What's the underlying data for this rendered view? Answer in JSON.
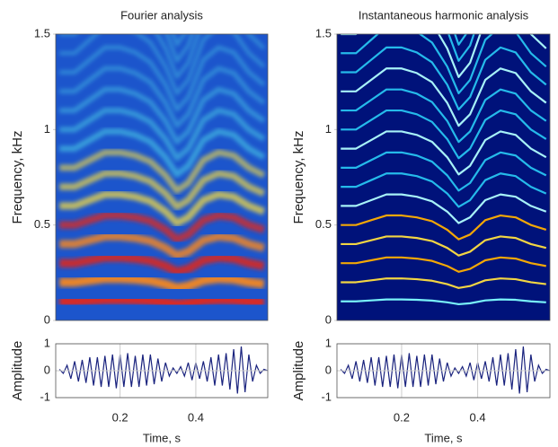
{
  "chart_data": [
    {
      "type": "spectrogram",
      "title": "Fourier analysis",
      "y_label": "Frequency, kHz",
      "x": [
        0.04,
        0.08,
        0.12,
        0.16,
        0.2,
        0.24,
        0.28,
        0.32,
        0.35,
        0.38,
        0.42,
        0.46,
        0.5,
        0.54,
        0.58
      ],
      "f0": [
        0.1,
        0.1,
        0.105,
        0.11,
        0.11,
        0.108,
        0.104,
        0.095,
        0.085,
        0.09,
        0.105,
        0.11,
        0.108,
        0.1,
        0.095
      ],
      "xlim": [
        0.03,
        0.59
      ],
      "ylim": [
        0,
        1.5
      ],
      "yticks": [
        0,
        0.5,
        1,
        1.5
      ]
    },
    {
      "type": "spectrogram",
      "title": "Instantaneous harmonic analysis",
      "y_label": "Frequency, kHz",
      "x": [
        0.04,
        0.08,
        0.12,
        0.16,
        0.2,
        0.24,
        0.28,
        0.32,
        0.35,
        0.38,
        0.42,
        0.46,
        0.5,
        0.54,
        0.58
      ],
      "f0": [
        0.1,
        0.1,
        0.105,
        0.11,
        0.11,
        0.108,
        0.104,
        0.095,
        0.085,
        0.09,
        0.105,
        0.11,
        0.108,
        0.1,
        0.095
      ],
      "xlim": [
        0.03,
        0.59
      ],
      "ylim": [
        0,
        1.5
      ],
      "yticks": [
        0,
        0.5,
        1,
        1.5
      ]
    },
    {
      "type": "line",
      "y_label": "Amplitude",
      "x_label": "Time, s",
      "color": "#1a237e",
      "grid": true,
      "x": [
        0.04,
        0.05,
        0.06,
        0.07,
        0.08,
        0.09,
        0.1,
        0.11,
        0.12,
        0.13,
        0.14,
        0.15,
        0.16,
        0.17,
        0.18,
        0.19,
        0.2,
        0.21,
        0.22,
        0.23,
        0.24,
        0.25,
        0.26,
        0.27,
        0.28,
        0.29,
        0.3,
        0.31,
        0.32,
        0.33,
        0.34,
        0.35,
        0.36,
        0.37,
        0.38,
        0.39,
        0.4,
        0.41,
        0.42,
        0.43,
        0.44,
        0.45,
        0.46,
        0.47,
        0.48,
        0.49,
        0.5,
        0.51,
        0.52,
        0.53,
        0.54,
        0.55,
        0.56,
        0.57,
        0.58,
        0.59
      ],
      "values": [
        0.05,
        -0.1,
        0.2,
        -0.3,
        0.35,
        -0.4,
        0.4,
        -0.45,
        0.5,
        -0.55,
        0.5,
        -0.6,
        0.55,
        -0.6,
        0.6,
        -0.65,
        0.6,
        -0.6,
        0.65,
        -0.6,
        0.55,
        -0.6,
        0.6,
        -0.55,
        0.6,
        -0.5,
        0.45,
        -0.4,
        0.3,
        -0.2,
        0.1,
        -0.1,
        0.15,
        -0.2,
        0.3,
        -0.35,
        0.3,
        -0.3,
        0.35,
        -0.4,
        0.5,
        -0.55,
        0.6,
        -0.55,
        0.65,
        -0.7,
        0.8,
        -0.85,
        0.9,
        -0.8,
        0.6,
        -0.4,
        0.2,
        -0.1,
        0.05,
        0
      ],
      "xlim": [
        0.03,
        0.59
      ],
      "xticks": [
        0.2,
        0.4
      ],
      "ylim": [
        -1,
        1
      ],
      "yticks": [
        -1,
        0,
        1
      ]
    },
    {
      "type": "line",
      "y_label": "Amplitude",
      "x_label": "Time, s",
      "color": "#1a237e",
      "grid": true,
      "x": [
        0.04,
        0.05,
        0.06,
        0.07,
        0.08,
        0.09,
        0.1,
        0.11,
        0.12,
        0.13,
        0.14,
        0.15,
        0.16,
        0.17,
        0.18,
        0.19,
        0.2,
        0.21,
        0.22,
        0.23,
        0.24,
        0.25,
        0.26,
        0.27,
        0.28,
        0.29,
        0.3,
        0.31,
        0.32,
        0.33,
        0.34,
        0.35,
        0.36,
        0.37,
        0.38,
        0.39,
        0.4,
        0.41,
        0.42,
        0.43,
        0.44,
        0.45,
        0.46,
        0.47,
        0.48,
        0.49,
        0.5,
        0.51,
        0.52,
        0.53,
        0.54,
        0.55,
        0.56,
        0.57,
        0.58,
        0.59
      ],
      "values": [
        0.05,
        -0.1,
        0.2,
        -0.3,
        0.35,
        -0.4,
        0.4,
        -0.45,
        0.5,
        -0.55,
        0.5,
        -0.6,
        0.55,
        -0.6,
        0.6,
        -0.65,
        0.6,
        -0.6,
        0.65,
        -0.6,
        0.55,
        -0.6,
        0.6,
        -0.55,
        0.6,
        -0.5,
        0.45,
        -0.4,
        0.3,
        -0.2,
        0.1,
        -0.1,
        0.15,
        -0.2,
        0.3,
        -0.35,
        0.3,
        -0.3,
        0.35,
        -0.4,
        0.5,
        -0.55,
        0.6,
        -0.55,
        0.65,
        -0.7,
        0.8,
        -0.85,
        0.9,
        -0.8,
        0.6,
        -0.4,
        0.2,
        -0.1,
        0.05,
        0
      ],
      "xlim": [
        0.03,
        0.59
      ],
      "xticks": [
        0.2,
        0.4
      ],
      "ylim": [
        -1,
        1
      ],
      "yticks": [
        -1,
        0,
        1
      ]
    }
  ]
}
